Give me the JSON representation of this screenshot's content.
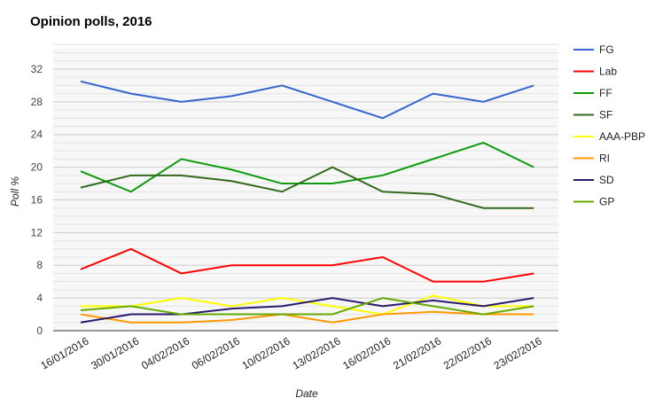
{
  "chart_data": {
    "type": "line",
    "title": "Opinion polls, 2016",
    "xlabel": "Date",
    "ylabel": "Poll %",
    "ylim": [
      0,
      35
    ],
    "yticks": [
      0,
      4,
      8,
      12,
      16,
      20,
      24,
      28,
      32
    ],
    "grid": true,
    "legend_position": "right",
    "categories": [
      "16/01/2016",
      "30/01/2016",
      "04/02/2016",
      "06/02/2016",
      "10/02/2016",
      "13/02/2016",
      "16/02/2016",
      "21/02/2016",
      "22/02/2016",
      "23/02/2016"
    ],
    "series": [
      {
        "name": "FG",
        "color": "#3366cc",
        "values": [
          30.5,
          29,
          28,
          28.7,
          30,
          28,
          26,
          29,
          28,
          30
        ]
      },
      {
        "name": "Lab",
        "color": "#ff0000",
        "values": [
          7.5,
          10,
          7,
          8,
          8,
          8,
          9,
          6,
          6,
          7
        ]
      },
      {
        "name": "FF",
        "color": "#0c9b0c",
        "values": [
          19.5,
          17,
          21,
          19.7,
          18,
          18,
          19,
          21,
          23,
          20
        ]
      },
      {
        "name": "SF",
        "color": "#326a1e",
        "values": [
          17.5,
          19,
          19,
          18.3,
          17,
          20,
          17,
          16.7,
          15,
          15
        ]
      },
      {
        "name": "AAA-PBP",
        "color": "#ffff00",
        "values": [
          3,
          3,
          4,
          3,
          4,
          3,
          2,
          4.3,
          3,
          3
        ]
      },
      {
        "name": "RI",
        "color": "#ff9900",
        "values": [
          2,
          1,
          1,
          1.3,
          2,
          1,
          2,
          2.3,
          2,
          2
        ]
      },
      {
        "name": "SD",
        "color": "#2a1a6e",
        "values": [
          1,
          2,
          2,
          2.7,
          3,
          4,
          3,
          3.7,
          3,
          4
        ]
      },
      {
        "name": "GP",
        "color": "#66aa00",
        "values": [
          2.5,
          3,
          2,
          2,
          2,
          2,
          4,
          3,
          2,
          3
        ]
      }
    ]
  }
}
